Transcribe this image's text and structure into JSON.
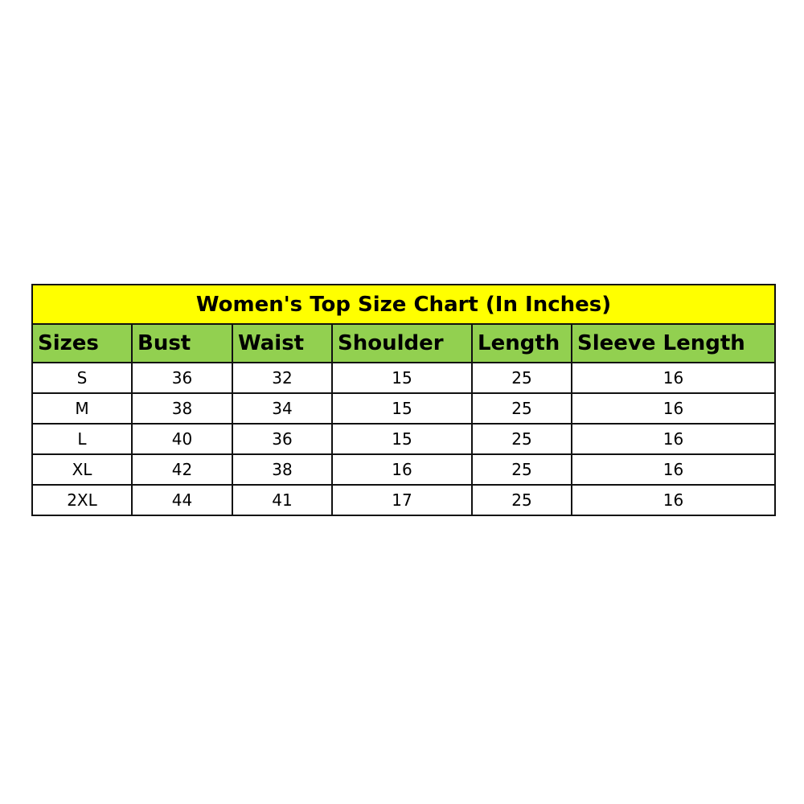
{
  "title": "Women's Top Size Chart (In Inches)",
  "colors": {
    "title_bg": "#ffff00",
    "header_bg": "#92d050"
  },
  "columns": [
    "Sizes",
    "Bust",
    "Waist",
    "Shoulder",
    "Length",
    "Sleeve Length"
  ],
  "rows": [
    [
      "S",
      "36",
      "32",
      "15",
      "25",
      "16"
    ],
    [
      "M",
      "38",
      "34",
      "15",
      "25",
      "16"
    ],
    [
      "L",
      "40",
      "36",
      "15",
      "25",
      "16"
    ],
    [
      "XL",
      "42",
      "38",
      "16",
      "25",
      "16"
    ],
    [
      "2XL",
      "44",
      "41",
      "17",
      "25",
      "16"
    ]
  ]
}
